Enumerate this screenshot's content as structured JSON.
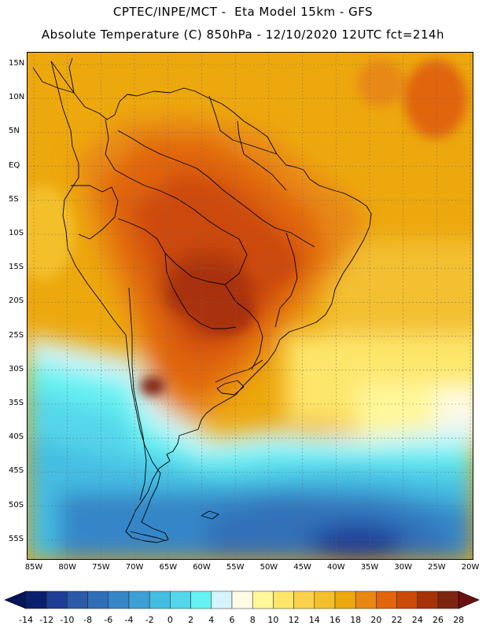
{
  "title_line1": "CPTEC/INPE/MCT -  Eta Model 15km - GFS",
  "title_line2": "Absolute Temperature (C) 850hPa - 12/10/2020 12UTC fct=214h",
  "lat_labels": [
    "15N",
    "10N",
    "5N",
    "EQ",
    "5S",
    "10S",
    "15S",
    "20S",
    "25S",
    "30S",
    "35S",
    "40S",
    "45S",
    "50S",
    "55S"
  ],
  "lon_labels": [
    "85W",
    "80W",
    "75W",
    "70W",
    "65W",
    "60W",
    "55W",
    "50W",
    "45W",
    "40W",
    "35W",
    "30W",
    "25W",
    "20W"
  ],
  "colorbar": {
    "labels": [
      "-14",
      "-12",
      "-10",
      "-8",
      "-6",
      "-4",
      "-2",
      "0",
      "2",
      "4",
      "6",
      "8",
      "10",
      "12",
      "14",
      "16",
      "18",
      "20",
      "22",
      "24",
      "26",
      "28"
    ],
    "colors": [
      "#0a1f6e",
      "#1e3d96",
      "#2a5aa8",
      "#306fb8",
      "#3686c8",
      "#3c9fd6",
      "#44bde2",
      "#55d6ea",
      "#66f2f2",
      "#d4f4fa",
      "#fffae6",
      "#fff79a",
      "#fde66a",
      "#f9d14a",
      "#f3bf2c",
      "#eda80e",
      "#e88812",
      "#e0650c",
      "#cc4a08",
      "#a83208",
      "#7e2410"
    ],
    "left_arrow_color": "#06145a",
    "right_arrow_color": "#6a1010"
  }
}
